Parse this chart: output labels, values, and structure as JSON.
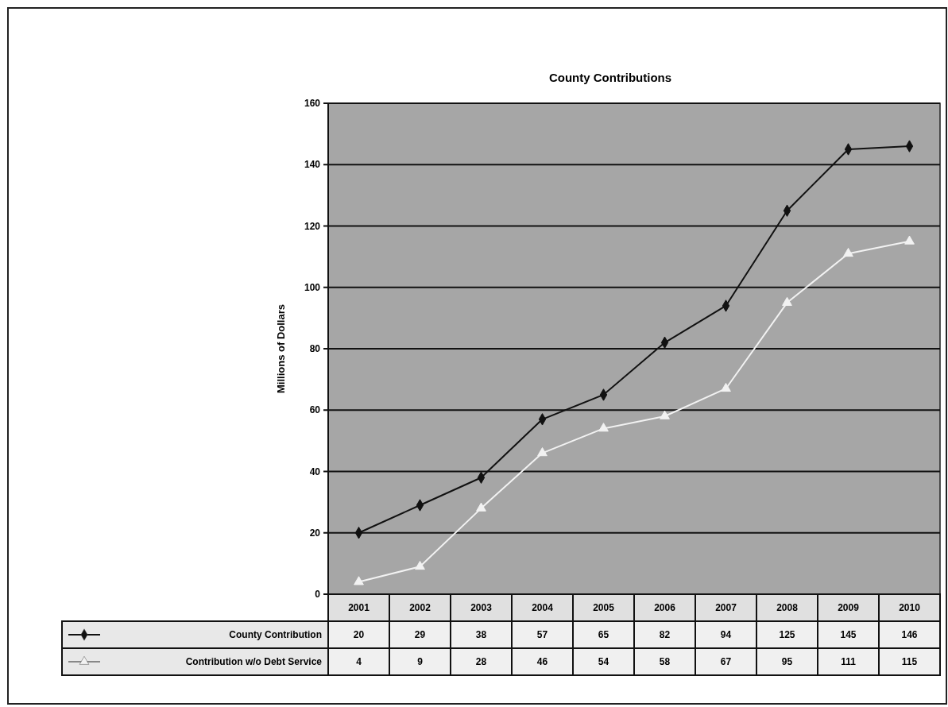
{
  "chart_data": {
    "type": "line",
    "title": "County Contributions",
    "ylabel": "Millions of Dollars",
    "categories": [
      "2001",
      "2002",
      "2003",
      "2004",
      "2005",
      "2006",
      "2007",
      "2008",
      "2009",
      "2010"
    ],
    "series": [
      {
        "name": "County Contribution",
        "color": "#111111",
        "marker": "diamond",
        "values": [
          20,
          29,
          38,
          57,
          65,
          82,
          94,
          125,
          145,
          146
        ]
      },
      {
        "name": "Contribution w/o Debt Service",
        "color": "#f2f2f2",
        "marker": "triangle",
        "values": [
          4,
          9,
          28,
          46,
          54,
          58,
          67,
          95,
          111,
          115
        ]
      }
    ],
    "ylim": [
      0,
      160
    ],
    "yticks": [
      0,
      20,
      40,
      60,
      80,
      100,
      120,
      140,
      160
    ],
    "grid": "y",
    "legend": "bottom",
    "data_labels": true
  }
}
